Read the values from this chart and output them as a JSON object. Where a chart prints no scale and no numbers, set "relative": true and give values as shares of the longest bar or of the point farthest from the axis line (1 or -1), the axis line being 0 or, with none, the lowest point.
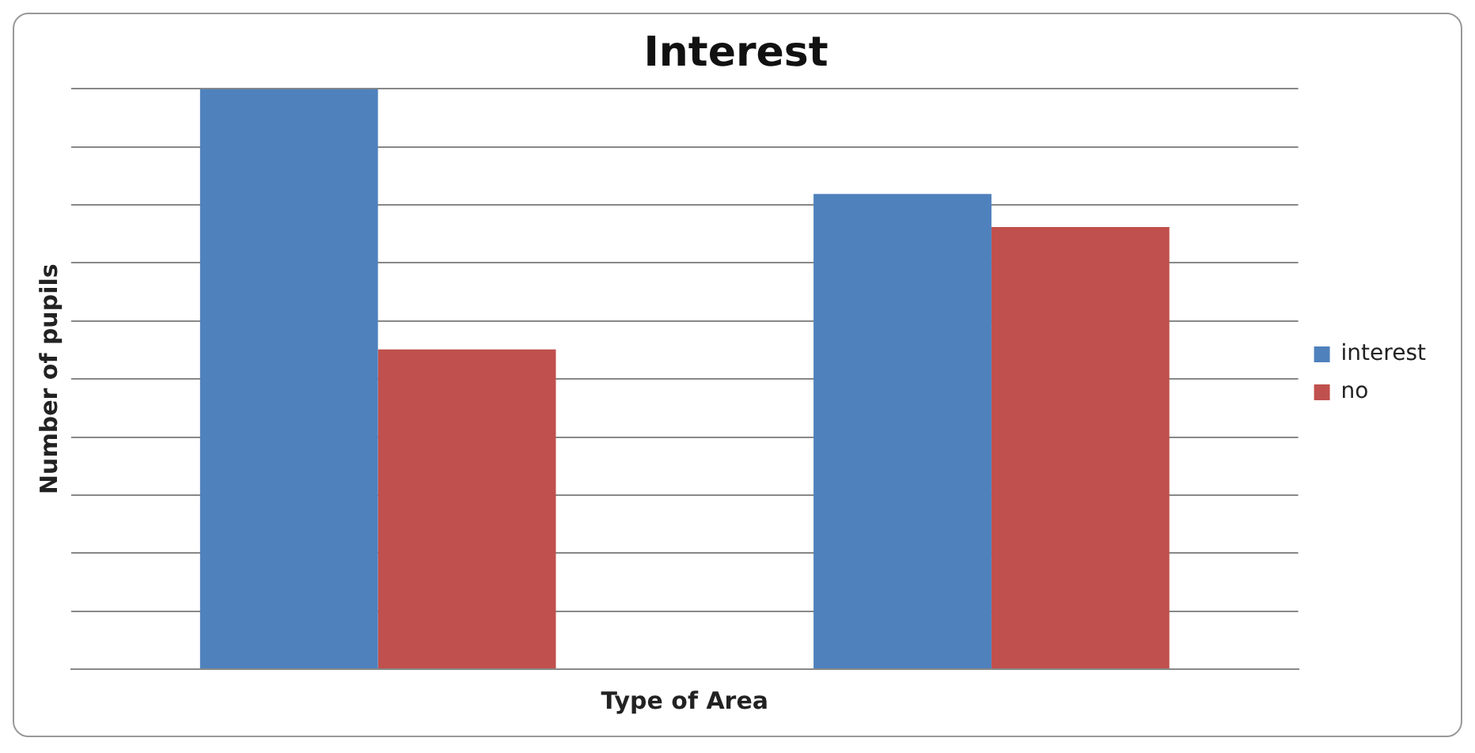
{
  "chart_data": {
    "type": "bar",
    "title": "Interest",
    "xlabel": "Type of Area",
    "ylabel": "Number of pupils",
    "categories": [
      null,
      null
    ],
    "relative": true,
    "grid": "y",
    "legend": "right",
    "series": [
      {
        "name": "interest",
        "color": "#4f81bd",
        "values": [
          1,
          0.819
        ]
      },
      {
        "name": "no",
        "color": "#c0504d",
        "values": [
          0.551,
          0.762
        ]
      }
    ]
  }
}
